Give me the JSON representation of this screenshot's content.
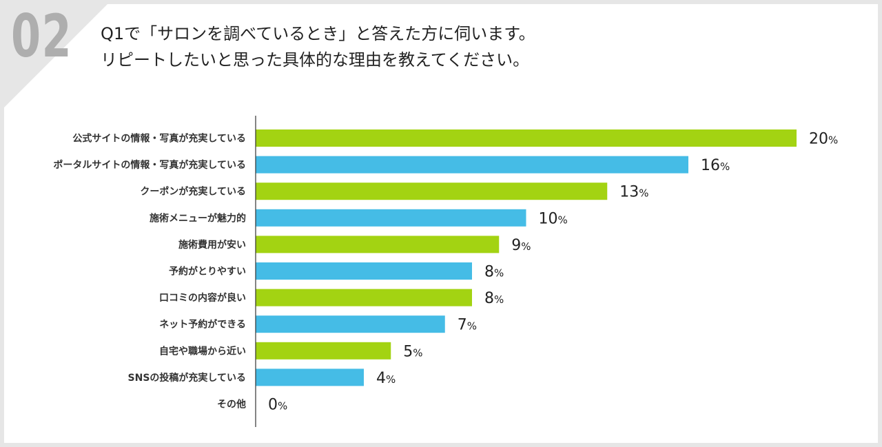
{
  "header": {
    "number": "02",
    "question_line1": "Q1で「サロンを調べているとき」と答えた方に伺います。",
    "question_line2": "リピートしたいと思った具体的な理由を教えてください。"
  },
  "colors": {
    "green": "#a3d312",
    "blue": "#45bce6",
    "axis": "#333333",
    "background": "#e6e6e6"
  },
  "chart_data": {
    "type": "bar",
    "orientation": "horizontal",
    "title": "",
    "xlabel": "",
    "ylabel": "",
    "xlim": [
      0,
      20
    ],
    "grid": false,
    "unit": "%",
    "categories": [
      "公式サイトの情報・写真が充実している",
      "ポータルサイトの情報・写真が充実している",
      "クーポンが充実している",
      "施術メニューが魅力的",
      "施術費用が安い",
      "予約がとりやすい",
      "口コミの内容が良い",
      "ネット予約ができる",
      "自宅や職場から近い",
      "SNSの投稿が充実している",
      "その他"
    ],
    "values": [
      20,
      16,
      13,
      10,
      9,
      8,
      8,
      7,
      5,
      4,
      0
    ],
    "bar_colors": [
      "green",
      "blue",
      "green",
      "blue",
      "green",
      "blue",
      "green",
      "blue",
      "green",
      "blue",
      "green"
    ]
  }
}
